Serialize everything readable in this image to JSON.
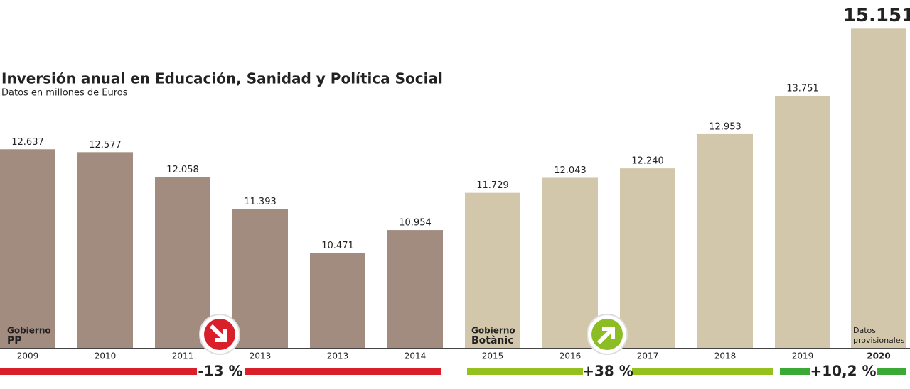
{
  "chart_data": {
    "type": "bar",
    "title": "Inversión anual en Educación, Sanidad y Política Social",
    "subtitle": "Datos en millones de Euros",
    "categories": [
      "2009",
      "2010",
      "2011",
      "2013",
      "2013",
      "2014",
      "2015",
      "2016",
      "2017",
      "2018",
      "2019",
      "2020"
    ],
    "values": [
      12637,
      12577,
      12058,
      11393,
      10471,
      10954,
      11729,
      12043,
      12240,
      12953,
      13751,
      15151
    ],
    "value_labels": [
      "12.637",
      "12.577",
      "12.058",
      "11.393",
      "10.471",
      "10.954",
      "11.729",
      "12.043",
      "12.240",
      "12.953",
      "13.751",
      "15.151"
    ],
    "colors": [
      "#a28b7f",
      "#a28b7f",
      "#a28b7f",
      "#a28b7f",
      "#a28b7f",
      "#a28b7f",
      "#d2c6ab",
      "#d2c6ab",
      "#d2c6ab",
      "#d2c6ab",
      "#d2c6ab",
      "#d2c6ab"
    ],
    "ylim": [
      8500,
      15200
    ],
    "annotations": [
      [
        "Gobierno",
        "PP"
      ],
      [
        "Gobierno",
        "Botànic"
      ],
      [
        "Datos",
        "provisionales"
      ]
    ],
    "changes": [
      "-13 %",
      "+38 %",
      "+10,2 %"
    ]
  }
}
